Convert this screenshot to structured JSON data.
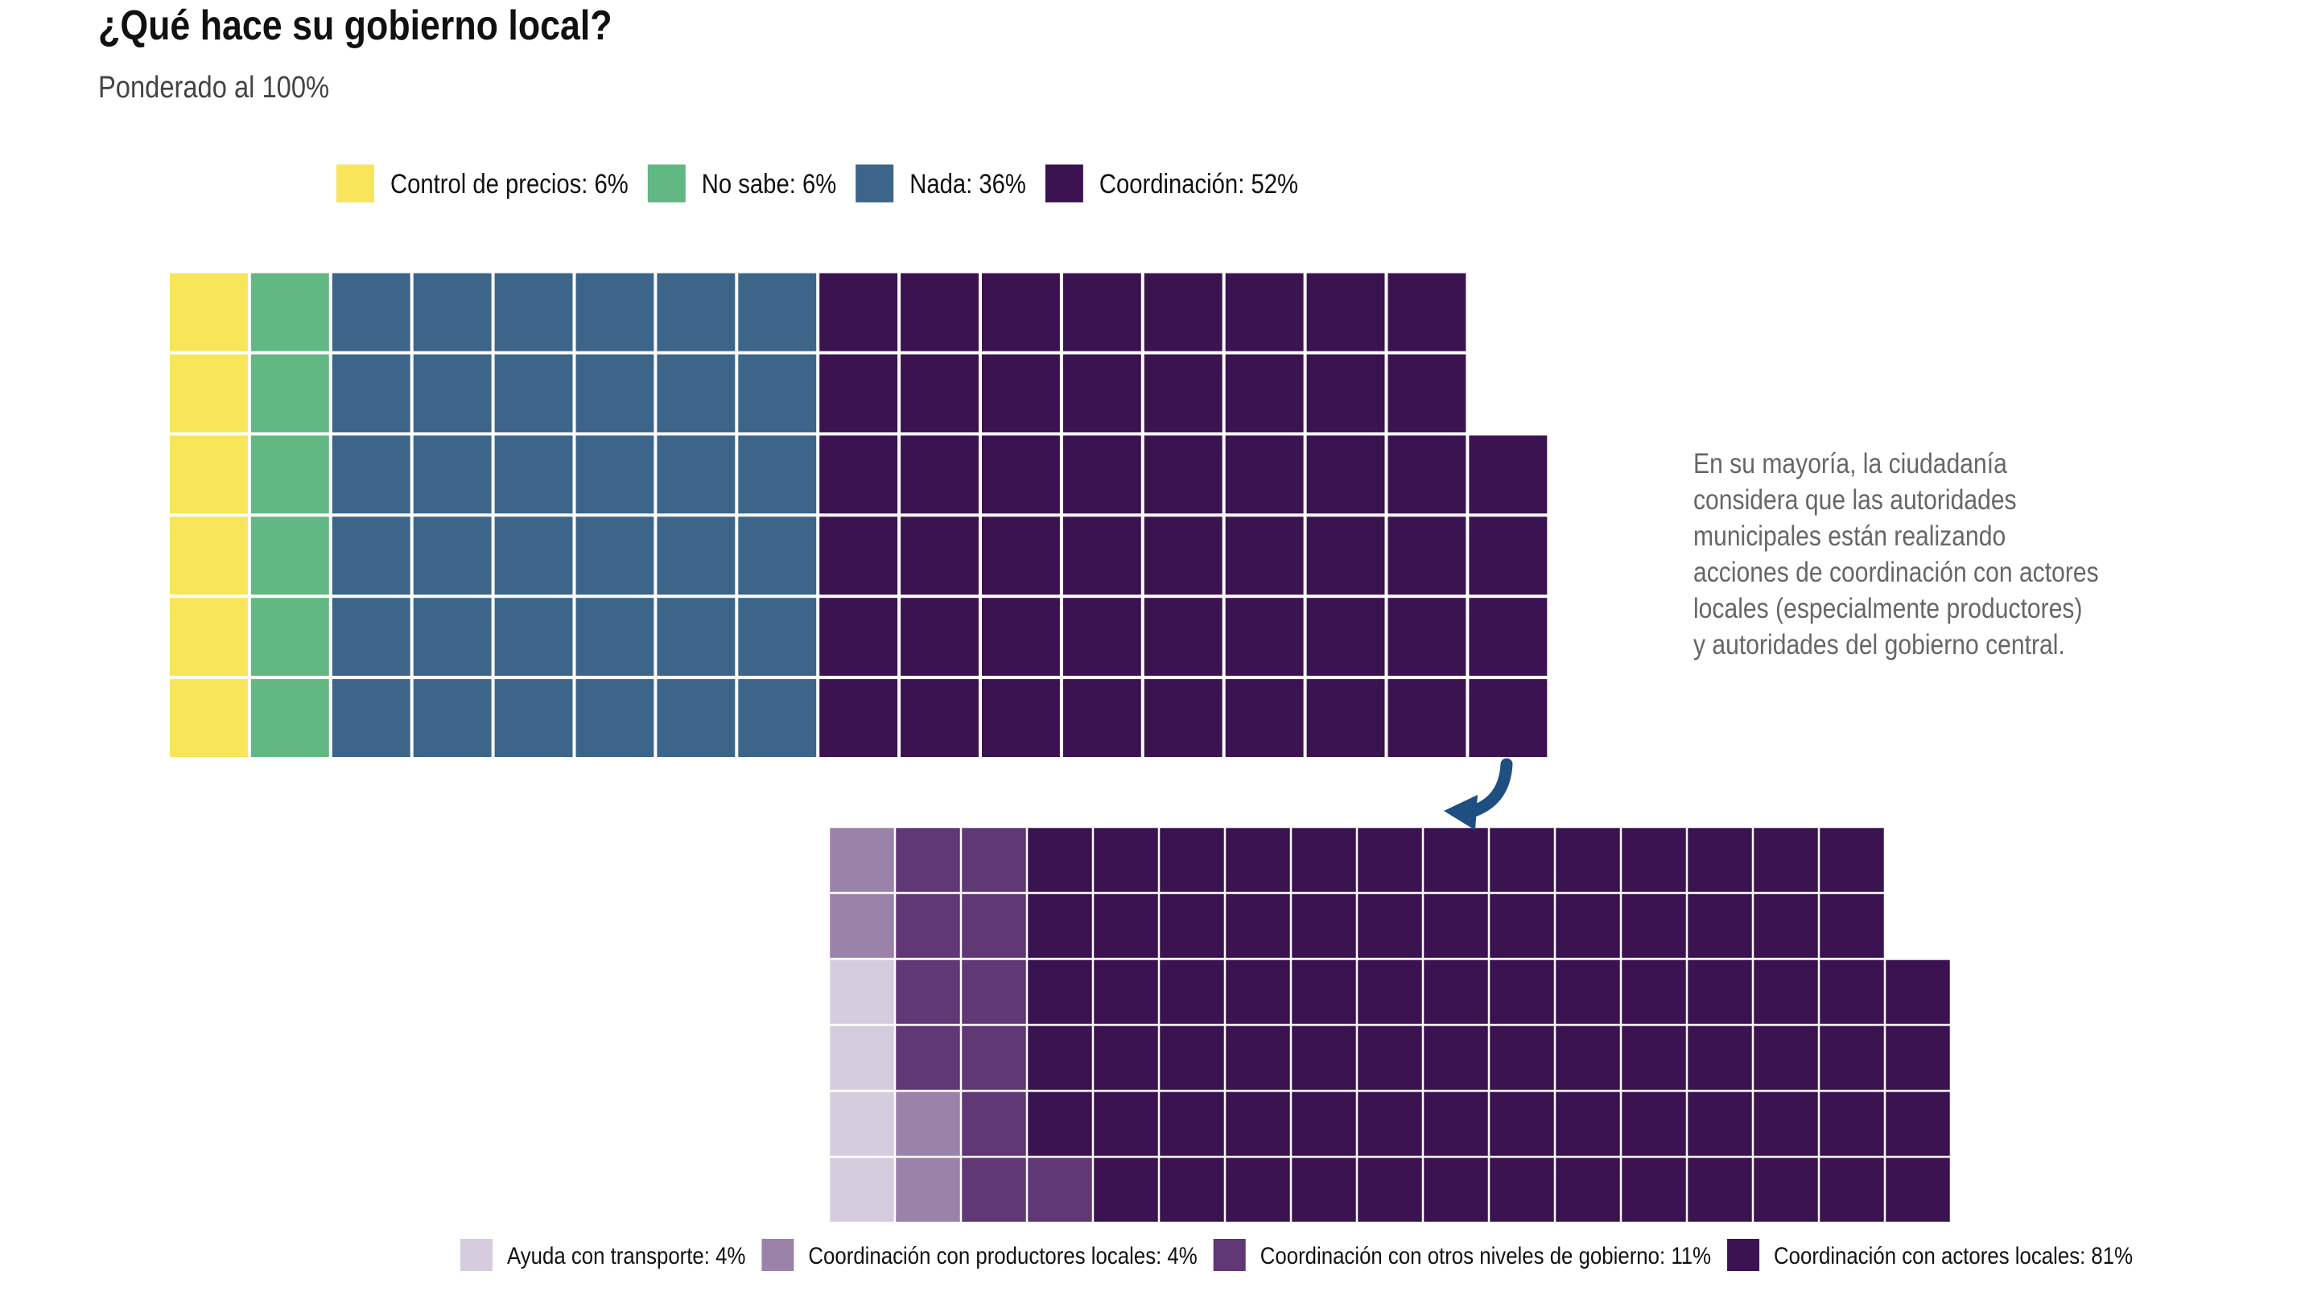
{
  "title": "¿Qué hace su gobierno local?",
  "subtitle": "Ponderado al 100%",
  "annotation": {
    "lines": [
      "En su mayoría, la ciudadanía",
      "considera que las autoridades",
      "municipales están realizando",
      "acciones de coordinación con actores",
      "locales (especialmente productores)",
      "y autoridades del gobierno central."
    ]
  },
  "chart_data": [
    {
      "type": "waffle",
      "title": "",
      "rows": 6,
      "total_squares": 100,
      "legend_placement": "top",
      "series": [
        {
          "name": "Control de precios",
          "value": 6,
          "label": "Control de precios: 6%",
          "color": "#f8e55a"
        },
        {
          "name": "No sabe",
          "value": 6,
          "label": "No sabe: 6%",
          "color": "#62b882"
        },
        {
          "name": "Nada",
          "value": 36,
          "label": "Nada: 36%",
          "color": "#3c6589"
        },
        {
          "name": "Coordinación",
          "value": 52,
          "label": "Coordinación: 52%",
          "color": "#3b1350"
        }
      ]
    },
    {
      "type": "waffle",
      "title": "",
      "rows": 6,
      "total_squares": 100,
      "legend_placement": "bottom",
      "series": [
        {
          "name": "Ayuda con transporte",
          "value": 4,
          "label": "Ayuda con transporte: 4%",
          "color": "#d5cddd"
        },
        {
          "name": "Coordinación con productores locales",
          "value": 4,
          "label": "Coordinación con productores locales: 4%",
          "color": "#9a82a8"
        },
        {
          "name": "Coordinación con otros niveles de gobierno",
          "value": 11,
          "label": "Coordinación con otros niveles de gobierno: 11%",
          "color": "#603875"
        },
        {
          "name": "Coordinación con actores locales",
          "value": 81,
          "label": "Coordinación con actores locales: 81%",
          "color": "#3b1350"
        }
      ]
    }
  ],
  "colors": {
    "arrow": "#1f4e80",
    "cell_border": "#ffffff"
  }
}
